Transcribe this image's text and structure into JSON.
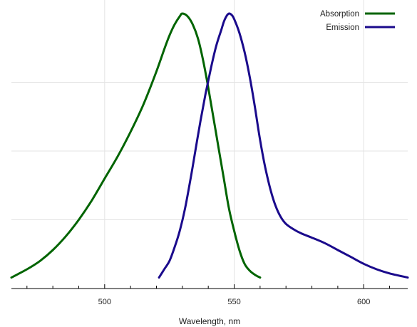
{
  "chart_data": {
    "type": "line",
    "title": "",
    "xlabel": "Wavelength, nm",
    "ylabel": "",
    "xlim": [
      464,
      617
    ],
    "ylim": [
      0,
      1.0
    ],
    "grid": true,
    "legend_position": "top-right",
    "x_ticks": [
      500,
      550,
      600
    ],
    "x_tick_labels": [
      "500",
      "550",
      "600"
    ],
    "series": [
      {
        "name": "Absorption",
        "color": "#006400",
        "points": [
          [
            464,
            0.04
          ],
          [
            470,
            0.07
          ],
          [
            475,
            0.1
          ],
          [
            480,
            0.14
          ],
          [
            485,
            0.19
          ],
          [
            490,
            0.25
          ],
          [
            495,
            0.32
          ],
          [
            500,
            0.4
          ],
          [
            505,
            0.48
          ],
          [
            510,
            0.57
          ],
          [
            515,
            0.67
          ],
          [
            520,
            0.79
          ],
          [
            523,
            0.87
          ],
          [
            525,
            0.92
          ],
          [
            527,
            0.96
          ],
          [
            529,
            0.99
          ],
          [
            530,
            1.0
          ],
          [
            532,
            0.99
          ],
          [
            534,
            0.96
          ],
          [
            536,
            0.91
          ],
          [
            538,
            0.83
          ],
          [
            540,
            0.73
          ],
          [
            542,
            0.62
          ],
          [
            544,
            0.51
          ],
          [
            546,
            0.4
          ],
          [
            548,
            0.29
          ],
          [
            550,
            0.21
          ],
          [
            552,
            0.14
          ],
          [
            554,
            0.09
          ],
          [
            556,
            0.065
          ],
          [
            558,
            0.05
          ],
          [
            560,
            0.04
          ]
        ]
      },
      {
        "name": "Emission",
        "color": "#1a0a8c",
        "points": [
          [
            521,
            0.04
          ],
          [
            523,
            0.07
          ],
          [
            525,
            0.1
          ],
          [
            527,
            0.15
          ],
          [
            529,
            0.21
          ],
          [
            531,
            0.29
          ],
          [
            533,
            0.39
          ],
          [
            535,
            0.5
          ],
          [
            537,
            0.61
          ],
          [
            539,
            0.71
          ],
          [
            541,
            0.8
          ],
          [
            543,
            0.88
          ],
          [
            545,
            0.94
          ],
          [
            546,
            0.97
          ],
          [
            547,
            0.99
          ],
          [
            548,
            1.0
          ],
          [
            549,
            0.995
          ],
          [
            550,
            0.98
          ],
          [
            552,
            0.93
          ],
          [
            554,
            0.86
          ],
          [
            556,
            0.77
          ],
          [
            558,
            0.66
          ],
          [
            560,
            0.54
          ],
          [
            562,
            0.44
          ],
          [
            564,
            0.36
          ],
          [
            566,
            0.3
          ],
          [
            568,
            0.26
          ],
          [
            570,
            0.235
          ],
          [
            573,
            0.215
          ],
          [
            576,
            0.2
          ],
          [
            580,
            0.185
          ],
          [
            585,
            0.165
          ],
          [
            590,
            0.14
          ],
          [
            595,
            0.115
          ],
          [
            600,
            0.09
          ],
          [
            605,
            0.07
          ],
          [
            610,
            0.055
          ],
          [
            617,
            0.04
          ]
        ]
      }
    ]
  }
}
